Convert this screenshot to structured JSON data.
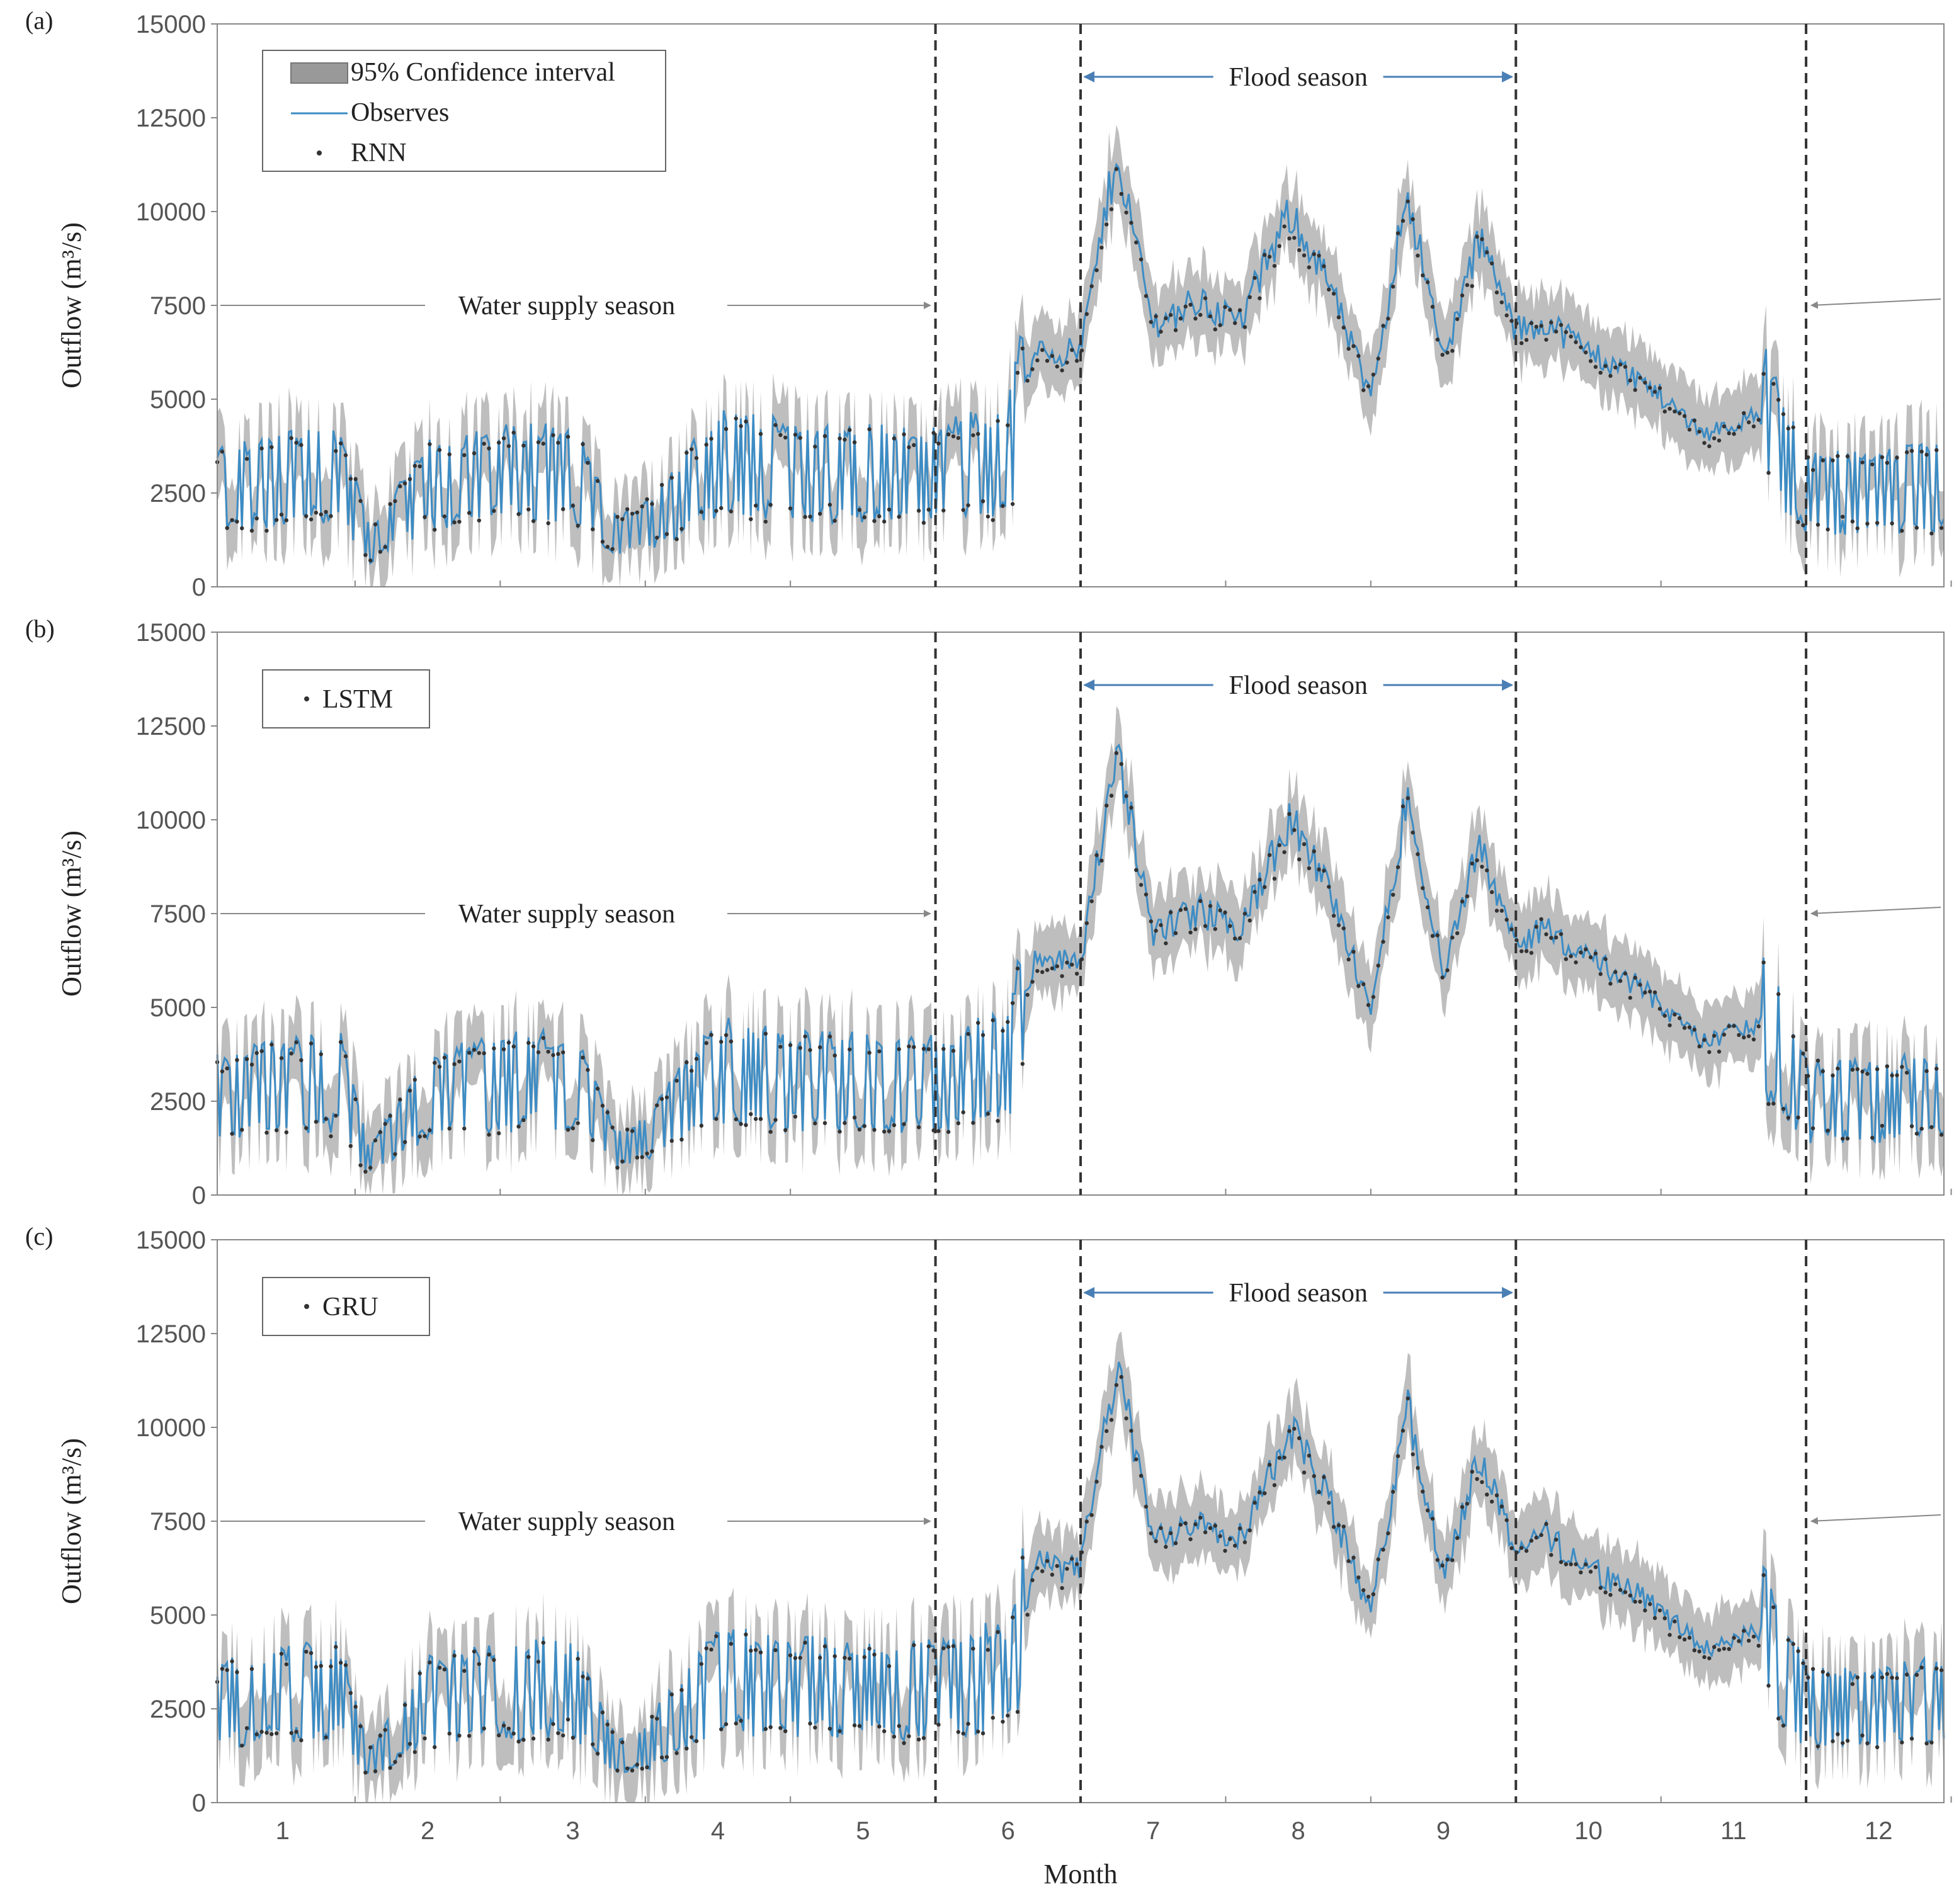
{
  "chart_data": [
    {
      "type": "line",
      "panel_label": "(a)",
      "ylabel": "Outflow (m³/s)",
      "ylim": [
        0,
        15000
      ],
      "yticks": [
        0,
        2500,
        5000,
        7500,
        10000,
        12500,
        15000
      ],
      "xlabel": "",
      "legend": [
        "95% Confidence interval",
        "Observes",
        "RNN"
      ],
      "legend_position": "top-left",
      "annotations": {
        "water_supply": "Water supply season",
        "flood": "Flood season"
      },
      "season_boundaries_month": [
        5.5,
        6.5,
        9.5,
        11.5
      ],
      "series": [
        {
          "name": "Observes",
          "x": [
            0.55,
            1.0,
            1.4,
            1.6,
            2.0,
            2.5,
            3.0,
            3.3,
            3.5,
            4.0,
            4.5,
            5.0,
            5.5,
            5.8,
            6.0,
            6.2,
            6.35,
            6.5,
            6.75,
            7.0,
            7.3,
            7.6,
            7.95,
            8.2,
            8.5,
            8.75,
            9.0,
            9.25,
            9.5,
            9.7,
            10.0,
            10.4,
            10.8,
            11.2,
            11.5,
            11.9,
            12.2,
            12.45
          ],
          "values": [
            2600,
            2900,
            3000,
            1100,
            2700,
            3000,
            3100,
            1300,
            1600,
            3300,
            3100,
            3000,
            3000,
            3300,
            3400,
            6500,
            6200,
            6300,
            11600,
            7000,
            7600,
            7100,
            10000,
            8200,
            5000,
            10600,
            6000,
            9300,
            6800,
            7100,
            6300,
            5400,
            4100,
            4600,
            2500,
            2500,
            2600,
            2700
          ]
        },
        {
          "name": "RNN",
          "x": [
            0.55,
            1.0,
            1.4,
            1.6,
            2.0,
            2.5,
            3.0,
            3.3,
            3.5,
            4.0,
            4.5,
            5.0,
            5.5,
            5.8,
            6.0,
            6.2,
            6.35,
            6.5,
            6.75,
            7.0,
            7.3,
            7.6,
            7.95,
            8.2,
            8.5,
            8.75,
            9.0,
            9.25,
            9.5,
            9.7,
            10.0,
            10.4,
            10.8,
            11.2,
            11.5,
            11.9,
            12.2,
            12.45
          ],
          "values": [
            2500,
            2800,
            2900,
            1100,
            2600,
            2900,
            3000,
            1300,
            1600,
            3200,
            3000,
            2900,
            2900,
            3200,
            3300,
            6300,
            6000,
            6200,
            11400,
            6900,
            7500,
            7000,
            9800,
            8100,
            5000,
            10400,
            5900,
            9100,
            6700,
            7000,
            6200,
            5300,
            4000,
            4500,
            2500,
            2500,
            2500,
            2600
          ]
        }
      ]
    },
    {
      "type": "line",
      "panel_label": "(b)",
      "ylabel": "Outflow (m³/s)",
      "ylim": [
        0,
        15000
      ],
      "yticks": [
        0,
        2500,
        5000,
        7500,
        10000,
        12500,
        15000
      ],
      "xlabel": "",
      "legend": [
        "LSTM"
      ],
      "legend_position": "top-left",
      "annotations": {
        "water_supply": "Water supply season",
        "flood": "Flood season"
      },
      "season_boundaries_month": [
        5.5,
        6.5,
        9.5,
        11.5
      ],
      "series": [
        {
          "name": "Observes",
          "x": [
            0.55,
            1.0,
            1.4,
            1.6,
            2.0,
            2.5,
            3.0,
            3.3,
            3.5,
            4.0,
            4.5,
            5.0,
            5.5,
            5.8,
            6.0,
            6.2,
            6.35,
            6.5,
            6.75,
            7.0,
            7.3,
            7.6,
            7.95,
            8.2,
            8.5,
            8.75,
            9.0,
            9.25,
            9.5,
            9.7,
            10.0,
            10.4,
            10.8,
            11.2,
            11.5,
            11.9,
            12.2,
            12.45
          ],
          "values": [
            2600,
            2900,
            3000,
            900,
            2700,
            3000,
            3100,
            1200,
            1500,
            3300,
            3100,
            3000,
            3000,
            3300,
            3400,
            6500,
            6200,
            6300,
            11800,
            7000,
            7600,
            7100,
            10000,
            8200,
            5000,
            10600,
            6000,
            9300,
            6800,
            7100,
            6300,
            5400,
            4100,
            4600,
            2500,
            2500,
            2600,
            2700
          ]
        },
        {
          "name": "LSTM",
          "x": [
            0.55,
            1.0,
            1.4,
            1.6,
            2.0,
            2.5,
            3.0,
            3.3,
            3.5,
            4.0,
            4.5,
            5.0,
            5.5,
            5.8,
            6.0,
            6.2,
            6.35,
            6.5,
            6.75,
            7.0,
            7.3,
            7.6,
            7.95,
            8.2,
            8.5,
            8.75,
            9.0,
            9.25,
            9.5,
            9.7,
            10.0,
            10.4,
            10.8,
            11.2,
            11.5,
            11.9,
            12.2,
            12.45
          ],
          "values": [
            2500,
            2800,
            2900,
            900,
            2600,
            2900,
            3000,
            1200,
            1500,
            3200,
            3000,
            2900,
            2900,
            3200,
            3300,
            6300,
            6000,
            6200,
            11600,
            6900,
            7500,
            7000,
            9800,
            8100,
            5000,
            10400,
            5900,
            9100,
            6700,
            7000,
            6200,
            5300,
            4000,
            4500,
            2500,
            2500,
            2500,
            2600
          ]
        }
      ]
    },
    {
      "type": "line",
      "panel_label": "(c)",
      "ylabel": "Outflow (m³/s)",
      "ylim": [
        0,
        15000
      ],
      "yticks": [
        0,
        2500,
        5000,
        7500,
        10000,
        12500,
        15000
      ],
      "xlabel": "Month",
      "xlim": [
        0.55,
        12.45
      ],
      "xticks": [
        1,
        2,
        3,
        4,
        5,
        6,
        7,
        8,
        9,
        10,
        11,
        12
      ],
      "legend": [
        "GRU"
      ],
      "legend_position": "top-left",
      "annotations": {
        "water_supply": "Water supply season",
        "flood": "Flood season"
      },
      "season_boundaries_month": [
        5.5,
        6.5,
        9.5,
        11.5
      ],
      "series": [
        {
          "name": "Observes",
          "x": [
            0.55,
            1.0,
            1.4,
            1.6,
            2.0,
            2.5,
            3.0,
            3.3,
            3.5,
            4.0,
            4.5,
            5.0,
            5.5,
            5.8,
            6.0,
            6.2,
            6.35,
            6.5,
            6.75,
            7.0,
            7.3,
            7.6,
            7.95,
            8.2,
            8.5,
            8.75,
            9.0,
            9.25,
            9.5,
            9.7,
            10.0,
            10.4,
            10.8,
            11.2,
            11.5,
            11.9,
            12.2,
            12.45
          ],
          "values": [
            2600,
            2900,
            3000,
            1000,
            2700,
            3000,
            3100,
            1200,
            1500,
            3300,
            3100,
            3000,
            3000,
            3300,
            3400,
            6500,
            6200,
            6300,
            11700,
            7000,
            7600,
            7100,
            10000,
            8200,
            5000,
            10600,
            6000,
            9300,
            6800,
            7100,
            6300,
            5400,
            4100,
            4600,
            2500,
            2500,
            2600,
            2700
          ]
        },
        {
          "name": "GRU",
          "x": [
            0.55,
            1.0,
            1.4,
            1.6,
            2.0,
            2.5,
            3.0,
            3.3,
            3.5,
            4.0,
            4.5,
            5.0,
            5.5,
            5.8,
            6.0,
            6.2,
            6.35,
            6.5,
            6.75,
            7.0,
            7.3,
            7.6,
            7.95,
            8.2,
            8.5,
            8.75,
            9.0,
            9.25,
            9.5,
            9.7,
            10.0,
            10.4,
            10.8,
            11.2,
            11.5,
            11.9,
            12.2,
            12.45
          ],
          "values": [
            2500,
            2800,
            2900,
            1000,
            2600,
            2900,
            3000,
            1200,
            1500,
            3200,
            3000,
            2900,
            2900,
            3200,
            3300,
            6300,
            6000,
            6200,
            11500,
            6900,
            7500,
            7000,
            9800,
            8100,
            5000,
            10400,
            5900,
            9100,
            6700,
            7000,
            6200,
            5300,
            4000,
            4500,
            2500,
            2500,
            2500,
            2600
          ]
        }
      ]
    }
  ],
  "colors": {
    "observed": "#3d8cc4",
    "ci": "#b3b3b3",
    "points": "#333333",
    "arrow": "#4a7fb5",
    "axis": "#888888"
  }
}
